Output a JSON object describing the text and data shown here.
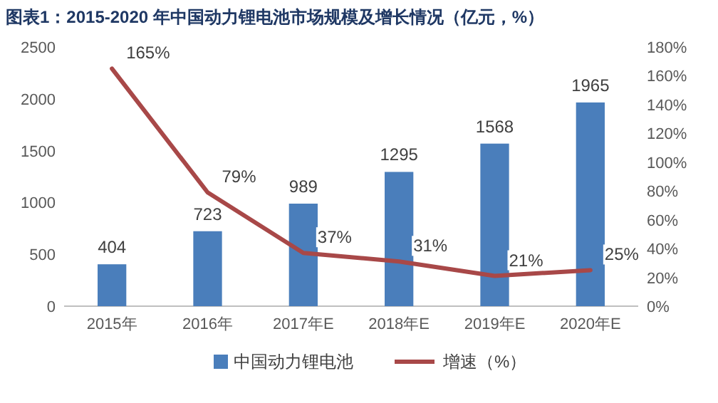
{
  "chart_data": {
    "type": "bar",
    "title": "图表1：2015-2020 年中国动力锂电池市场规模及增长情况（亿元，%）",
    "categories": [
      "2015年",
      "2016年",
      "2017年E",
      "2018年E",
      "2019年E",
      "2020年E"
    ],
    "series": [
      {
        "name": "中国动力锂电池",
        "type": "bar",
        "color": "#4a7ebb",
        "values": [
          404,
          723,
          989,
          1295,
          1568,
          1965
        ]
      },
      {
        "name": "增速（%）",
        "type": "line",
        "axis": "y2",
        "color": "#a84848",
        "values": [
          165,
          79,
          37,
          31,
          21,
          25
        ],
        "value_labels": [
          "165%",
          "79%",
          "37%",
          "31%",
          "21%",
          "25%"
        ]
      }
    ],
    "data_labels": true,
    "ylim": [
      0,
      2500
    ],
    "yticks": [
      0,
      500,
      1000,
      1500,
      2000,
      2500
    ],
    "y2lim": [
      0,
      180
    ],
    "y2ticks": [
      {
        "value": 0,
        "label": "0%"
      },
      {
        "value": 20,
        "label": "20%"
      },
      {
        "value": 40,
        "label": "40%"
      },
      {
        "value": 60,
        "label": "60%"
      },
      {
        "value": 80,
        "label": "80%"
      },
      {
        "value": 100,
        "label": "100%"
      },
      {
        "value": 120,
        "label": "120%"
      },
      {
        "value": 140,
        "label": "140%"
      },
      {
        "value": 160,
        "label": "160%"
      },
      {
        "value": 180,
        "label": "180%"
      }
    ],
    "legend": "bottom",
    "grid": false
  }
}
